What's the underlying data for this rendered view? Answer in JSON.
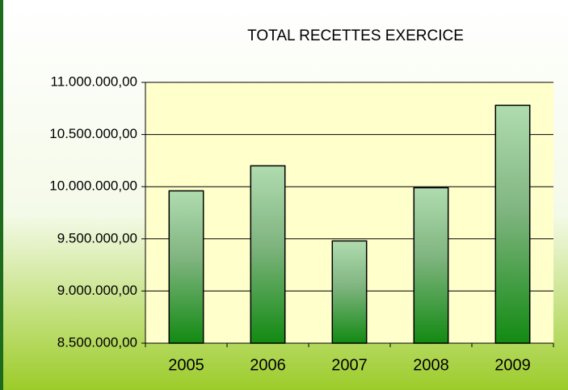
{
  "chart_data": {
    "type": "bar",
    "title": "TOTAL RECETTES EXERCICE",
    "categories": [
      "2005",
      "2006",
      "2007",
      "2008",
      "2009"
    ],
    "values": [
      9960000,
      10200000,
      9480000,
      9990000,
      10780000
    ],
    "color": "#1a8a1a",
    "ylim": [
      8500000,
      11000000
    ],
    "yticks": [
      {
        "value": 8500000,
        "label": "8.500.000,00"
      },
      {
        "value": 9000000,
        "label": "9.000.000,00"
      },
      {
        "value": 9500000,
        "label": "9.500.000,00"
      },
      {
        "value": 10000000,
        "label": "10.000.000,00"
      },
      {
        "value": 10500000,
        "label": "10.500.000,00"
      },
      {
        "value": 11000000,
        "label": "11.000.000,00"
      }
    ],
    "grid": true
  }
}
